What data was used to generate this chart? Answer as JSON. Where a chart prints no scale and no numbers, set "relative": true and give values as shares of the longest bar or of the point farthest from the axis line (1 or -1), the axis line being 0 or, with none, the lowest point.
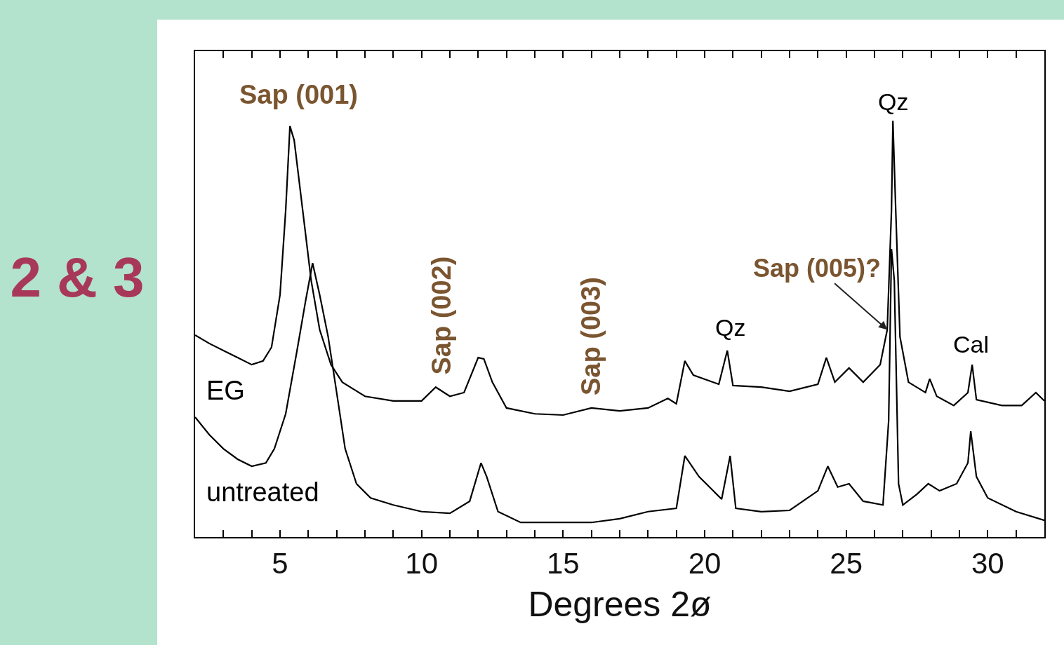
{
  "chart_data": {
    "type": "line",
    "title": "2 & 3",
    "xlabel": "Degrees 2ø",
    "relative": true,
    "legend": false,
    "marker": "none",
    "line_style": "solid",
    "xlim": [
      2,
      32
    ],
    "xticks": [
      {
        "value": 3,
        "label": null
      },
      {
        "value": 4,
        "label": null
      },
      5,
      {
        "value": 6,
        "label": null
      },
      {
        "value": 7,
        "label": null
      },
      {
        "value": 8,
        "label": null
      },
      {
        "value": 9,
        "label": null
      },
      10,
      {
        "value": 11,
        "label": null
      },
      {
        "value": 12,
        "label": null
      },
      {
        "value": 13,
        "label": null
      },
      {
        "value": 14,
        "label": null
      },
      15,
      {
        "value": 16,
        "label": null
      },
      {
        "value": 17,
        "label": null
      },
      {
        "value": 18,
        "label": null
      },
      {
        "value": 19,
        "label": null
      },
      20,
      {
        "value": 21,
        "label": null
      },
      {
        "value": 22,
        "label": null
      },
      {
        "value": 23,
        "label": null
      },
      {
        "value": 24,
        "label": null
      },
      25,
      {
        "value": 26,
        "label": null
      },
      {
        "value": 27,
        "label": null
      },
      {
        "value": 28,
        "label": null
      },
      {
        "value": 29,
        "label": null
      },
      30,
      {
        "value": 31,
        "label": null
      }
    ],
    "series": [
      {
        "name": "EG",
        "color": "#000000",
        "x": [
          2.0,
          2.5,
          3.0,
          3.5,
          4.0,
          4.4,
          4.7,
          5.0,
          5.2,
          5.35,
          5.5,
          5.8,
          6.1,
          6.4,
          6.8,
          7.2,
          8.0,
          9.0,
          10.0,
          10.5,
          11.0,
          11.5,
          12.0,
          12.2,
          12.5,
          13.0,
          14.0,
          15.0,
          16.0,
          17.0,
          18.0,
          18.7,
          19.0,
          19.3,
          19.6,
          20.5,
          20.8,
          21.0,
          22.0,
          23.0,
          24.0,
          24.3,
          24.6,
          25.1,
          25.6,
          26.2,
          26.45,
          26.6,
          26.65,
          26.75,
          26.9,
          27.2,
          27.8,
          27.95,
          28.2,
          28.8,
          29.3,
          29.45,
          29.6,
          30.5,
          31.2,
          31.7,
          32.0
        ],
        "values": [
          0.485,
          0.465,
          0.448,
          0.431,
          0.414,
          0.423,
          0.456,
          0.582,
          0.785,
          0.987,
          0.953,
          0.785,
          0.616,
          0.498,
          0.414,
          0.372,
          0.338,
          0.327,
          0.327,
          0.36,
          0.338,
          0.347,
          0.431,
          0.428,
          0.372,
          0.31,
          0.296,
          0.293,
          0.31,
          0.303,
          0.31,
          0.333,
          0.32,
          0.423,
          0.389,
          0.367,
          0.448,
          0.364,
          0.36,
          0.35,
          0.367,
          0.431,
          0.372,
          0.406,
          0.372,
          0.414,
          0.498,
          0.785,
          1.0,
          0.785,
          0.481,
          0.372,
          0.347,
          0.38,
          0.338,
          0.316,
          0.347,
          0.414,
          0.33,
          0.316,
          0.316,
          0.347,
          0.327
        ]
      },
      {
        "name": "untreated",
        "color": "#000000",
        "x": [
          2.0,
          2.5,
          3.0,
          3.5,
          4.0,
          4.5,
          4.8,
          5.2,
          5.6,
          5.9,
          6.15,
          6.4,
          6.7,
          7.0,
          7.3,
          7.7,
          8.2,
          9.0,
          10.0,
          11.0,
          11.7,
          12.1,
          12.3,
          12.7,
          13.5,
          15.0,
          16.0,
          17.0,
          18.0,
          19.0,
          19.3,
          19.8,
          20.6,
          20.9,
          21.1,
          22.0,
          23.0,
          24.0,
          24.35,
          24.7,
          25.1,
          25.6,
          26.3,
          26.5,
          26.6,
          26.7,
          26.85,
          27.0,
          27.5,
          27.9,
          28.3,
          28.9,
          29.3,
          29.4,
          29.6,
          30.0,
          31.0,
          32.0
        ],
        "values": [
          0.288,
          0.246,
          0.212,
          0.187,
          0.17,
          0.178,
          0.212,
          0.296,
          0.448,
          0.566,
          0.658,
          0.582,
          0.481,
          0.347,
          0.212,
          0.128,
          0.094,
          0.077,
          0.061,
          0.057,
          0.086,
          0.178,
          0.145,
          0.061,
          0.035,
          0.035,
          0.035,
          0.044,
          0.061,
          0.069,
          0.195,
          0.145,
          0.091,
          0.195,
          0.069,
          0.061,
          0.064,
          0.111,
          0.17,
          0.12,
          0.128,
          0.086,
          0.077,
          0.279,
          0.692,
          0.616,
          0.128,
          0.077,
          0.103,
          0.128,
          0.111,
          0.128,
          0.178,
          0.254,
          0.145,
          0.094,
          0.061,
          0.04
        ]
      }
    ],
    "annotations": [
      {
        "text": "Sap (001)",
        "x": 5.35,
        "y": 0.987
      },
      {
        "text": "Sap (002)",
        "x": 10.6,
        "y": 0.36
      },
      {
        "text": "Sap (003)",
        "x": 15.8,
        "y": 0.31
      },
      {
        "text": "Qz",
        "x": 20.9,
        "y": 0.448
      },
      {
        "text": "Sap (005)?",
        "x": 26.45,
        "y": 0.498
      },
      {
        "text": "Qz",
        "x": 26.65,
        "y": 1.0
      },
      {
        "text": "Cal",
        "x": 29.4,
        "y": 0.414
      }
    ]
  }
}
